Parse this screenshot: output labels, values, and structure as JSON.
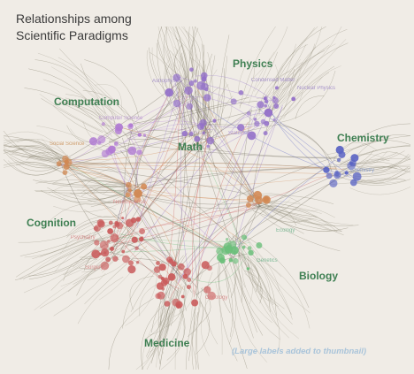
{
  "title": {
    "line1": "Relationships among",
    "line2": "Scientific Paradigms"
  },
  "regions": [
    {
      "name": "Physics",
      "color": "#3e7f52"
    },
    {
      "name": "Computation",
      "color": "#3e7f52"
    },
    {
      "name": "Math",
      "color": "#3e7f52"
    },
    {
      "name": "Chemistry",
      "color": "#3e7f52"
    },
    {
      "name": "Cognition",
      "color": "#3e7f52"
    },
    {
      "name": "Biology",
      "color": "#3e7f52"
    },
    {
      "name": "Medicine",
      "color": "#3e7f52"
    }
  ],
  "minor_labels": [
    {
      "text": "Astrophysics",
      "color": "#9a84c6"
    },
    {
      "text": "Condensed Matter",
      "color": "#9a84c6"
    },
    {
      "text": "Nuclear Physics",
      "color": "#9a84c6"
    },
    {
      "text": "Computer Science",
      "color": "#b08acb"
    },
    {
      "text": "Social Science",
      "color": "#c99058"
    },
    {
      "text": "Statistics",
      "color": "#a68ad0"
    },
    {
      "text": "Chemistry",
      "color": "#8aa0d6"
    },
    {
      "text": "Neuroscience",
      "color": "#d47f7f"
    },
    {
      "text": "Ecology",
      "color": "#6cb28a"
    },
    {
      "text": "Psychiatry",
      "color": "#d47f7f"
    },
    {
      "text": "Genetics",
      "color": "#6cb28a"
    },
    {
      "text": "Oncology",
      "color": "#d47f7f"
    },
    {
      "text": "Surgery",
      "color": "#d47f7f"
    }
  ],
  "note": "(Large labels added to thumbnail)",
  "colors": {
    "background": "#f0ece6",
    "strands": "#8c8774",
    "physics": "#9370c9",
    "chemistry": "#5a64c4",
    "computation": "#b07ad3",
    "cognition": "#d18852",
    "medicine": "#c95a5a",
    "biology": "#6bbf7a",
    "label_green": "#3e7f52"
  }
}
